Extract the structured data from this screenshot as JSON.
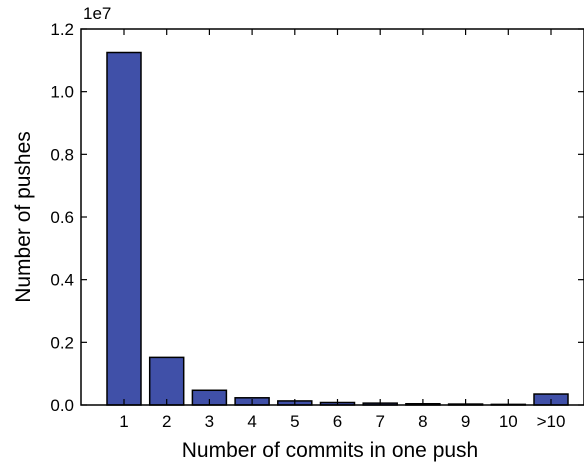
{
  "chart_data": {
    "type": "bar",
    "categories": [
      "1",
      "2",
      "3",
      "4",
      "5",
      "6",
      "7",
      "8",
      "9",
      "10",
      ">10"
    ],
    "values": [
      11250000,
      1520000,
      470000,
      230000,
      130000,
      80000,
      60000,
      40000,
      30000,
      20000,
      350000
    ],
    "xlabel": "Number of commits in one push",
    "ylabel": "Number of pushes",
    "ylim": [
      0,
      12000000
    ],
    "y_scale_label": "1e7",
    "y_tick_labels": [
      "0.0",
      "0.2",
      "0.4",
      "0.6",
      "0.8",
      "1.0",
      "1.2"
    ],
    "y_tick_values": [
      0,
      2000000,
      4000000,
      6000000,
      8000000,
      10000000,
      12000000
    ],
    "grid": false,
    "colors": {
      "bar": "#4050a8",
      "edge": "#000000"
    }
  }
}
